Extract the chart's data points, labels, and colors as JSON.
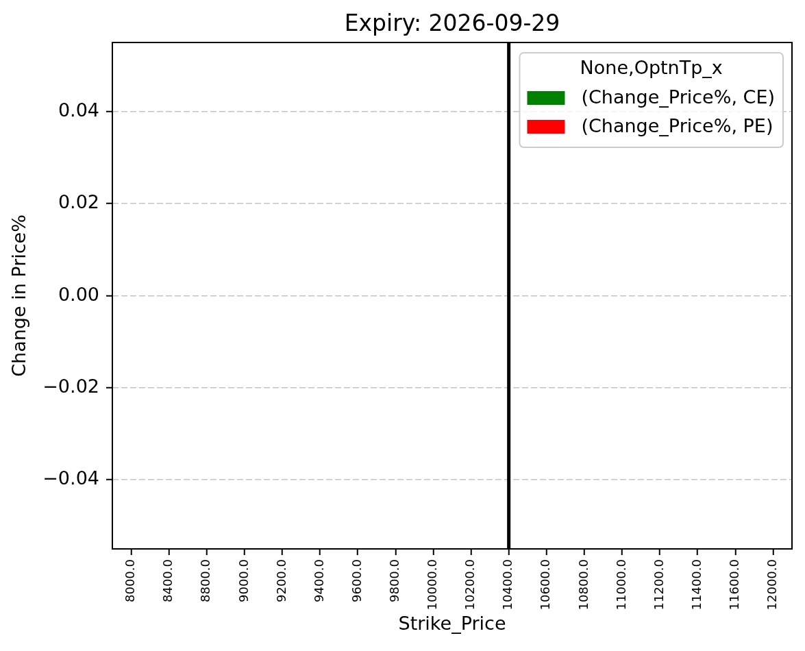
{
  "chart_data": {
    "type": "bar",
    "title": "Expiry: 2026-09-29",
    "xlabel": "Strike_Price",
    "ylabel": "Change in Price%",
    "legend_title": "None,OptnTp_x",
    "categories": [
      "8000.0",
      "8400.0",
      "8800.0",
      "9000.0",
      "9200.0",
      "9400.0",
      "9600.0",
      "9800.0",
      "10000.0",
      "10200.0",
      "10400.0",
      "10600.0",
      "10800.0",
      "11000.0",
      "11200.0",
      "11400.0",
      "11600.0",
      "12000.0"
    ],
    "series": [
      {
        "name": "(Change_Price%, CE)",
        "color": "#008000",
        "values": [
          0,
          0,
          0,
          0,
          0,
          0,
          0,
          0,
          0,
          0,
          0,
          0,
          0,
          0,
          0,
          0,
          0,
          0
        ]
      },
      {
        "name": "(Change_Price%, PE)",
        "color": "#ff0000",
        "values": [
          0,
          0,
          0,
          0,
          0,
          0,
          0,
          0,
          0,
          0,
          0,
          0,
          0,
          0,
          0,
          0,
          0,
          0
        ]
      }
    ],
    "ylim": [
      -0.055,
      0.055
    ],
    "yticks": [
      {
        "value": -0.04,
        "label": "−0.04"
      },
      {
        "value": -0.02,
        "label": "−0.02"
      },
      {
        "value": 0,
        "label": "0.00"
      },
      0.02,
      0.04
    ],
    "ref_lines": [
      {
        "axis": "x",
        "value": "10400.0",
        "color": "#000000"
      }
    ],
    "grid": "y",
    "legend": "top right"
  }
}
